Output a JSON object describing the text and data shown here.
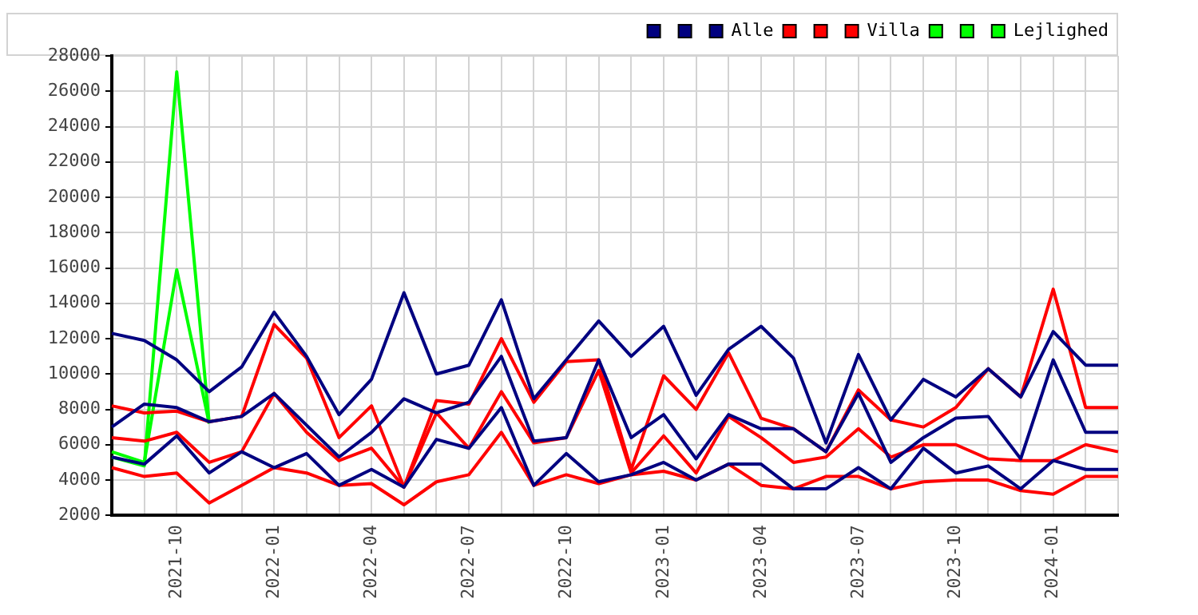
{
  "chart_data": {
    "type": "line",
    "categories": [
      null,
      null,
      "2021-10",
      null,
      null,
      "2022-01",
      null,
      null,
      "2022-04",
      null,
      null,
      "2022-07",
      null,
      null,
      "2022-10",
      null,
      null,
      "2023-01",
      null,
      null,
      "2023-04",
      null,
      null,
      "2023-07",
      null,
      null,
      "2023-10",
      null,
      null,
      "2024-01",
      null,
      null
    ],
    "series": [
      {
        "color": "#000080",
        "values": [
          12300,
          11900,
          10800,
          9000,
          10400,
          13500,
          11000,
          7700,
          9700,
          14600,
          10000,
          10500,
          14200,
          8600,
          10800,
          13000,
          11000,
          12700,
          8800,
          11400,
          12700,
          10900,
          6100,
          11100,
          7400,
          9700,
          8700,
          10300,
          8700,
          12400,
          10500,
          10500
        ]
      },
      {
        "color": "#000080",
        "values": [
          7000,
          8300,
          8100,
          7300,
          7600,
          8900,
          7100,
          5300,
          6700,
          8600,
          7800,
          8400,
          11000,
          6200,
          6400,
          10800,
          6400,
          7700,
          5200,
          7700,
          6900,
          6900,
          5600,
          8900,
          5000,
          6400,
          7500,
          7600,
          5200,
          10800,
          6700,
          6700
        ]
      },
      {
        "name": "Alle",
        "color": "#000080",
        "values": [
          5300,
          4900,
          6500,
          4400,
          5600,
          4700,
          5500,
          3700,
          4600,
          3600,
          6300,
          5800,
          8100,
          3700,
          5500,
          3900,
          4300,
          5000,
          4000,
          4900,
          4900,
          3500,
          3500,
          4700,
          3500,
          5800,
          4400,
          4800,
          3500,
          5100,
          4600,
          4600
        ]
      },
      {
        "color": "#ff0000",
        "values": [
          8200,
          7800,
          7900,
          7300,
          7600,
          12800,
          10900,
          6400,
          8200,
          3600,
          8500,
          8300,
          12000,
          8400,
          10700,
          10800,
          4600,
          9900,
          8000,
          11200,
          7500,
          6900,
          5600,
          9100,
          7400,
          7000,
          8100,
          10300,
          8700,
          14800,
          8100,
          8100
        ]
      },
      {
        "color": "#ff0000",
        "values": [
          6400,
          6200,
          6700,
          5000,
          5600,
          8900,
          6700,
          5100,
          5800,
          3600,
          7800,
          5800,
          9000,
          6100,
          6400,
          10200,
          4400,
          6500,
          4400,
          7600,
          6400,
          5000,
          5300,
          6900,
          5300,
          6000,
          6000,
          5200,
          5100,
          5100,
          6000,
          5600
        ]
      },
      {
        "name": "Villa",
        "color": "#ff0000",
        "values": [
          4700,
          4200,
          4400,
          2700,
          3700,
          4700,
          4400,
          3700,
          3800,
          2600,
          3900,
          4300,
          6700,
          3700,
          4300,
          3800,
          4300,
          4500,
          4000,
          4900,
          3700,
          3500,
          4200,
          4200,
          3500,
          3900,
          4000,
          4000,
          3400,
          3200,
          4200,
          4200
        ]
      },
      {
        "color": "#00ff00",
        "values": [
          5600,
          5000,
          15900,
          7200,
          null,
          null,
          null,
          null,
          null,
          null,
          null,
          null,
          null,
          null,
          null,
          null,
          null,
          null,
          null,
          null,
          null,
          null,
          null,
          null,
          null,
          null,
          null,
          null,
          null,
          null,
          null,
          null
        ]
      },
      {
        "color": "#00ff00",
        "values": [
          5300,
          4800,
          27100,
          7200,
          null,
          null,
          null,
          null,
          null,
          null,
          null,
          null,
          null,
          null,
          null,
          null,
          null,
          null,
          null,
          null,
          null,
          null,
          null,
          null,
          null,
          null,
          null,
          null,
          null,
          null,
          null,
          null
        ]
      },
      {
        "name": "Lejlighed",
        "color": "#00ff00",
        "values": [
          null,
          null,
          null,
          null,
          null,
          null,
          null,
          null,
          null,
          null,
          null,
          null,
          null,
          null,
          null,
          null,
          null,
          null,
          null,
          null,
          null,
          null,
          null,
          null,
          null,
          null,
          null,
          null,
          null,
          null,
          null,
          null
        ]
      }
    ],
    "ylim": [
      2000,
      28000
    ],
    "yticks": [
      2000,
      4000,
      6000,
      8000,
      10000,
      12000,
      14000,
      16000,
      18000,
      20000,
      22000,
      24000,
      26000,
      28000
    ],
    "grid": true,
    "legend": "top right",
    "marker": "none",
    "line_style": "solid"
  }
}
